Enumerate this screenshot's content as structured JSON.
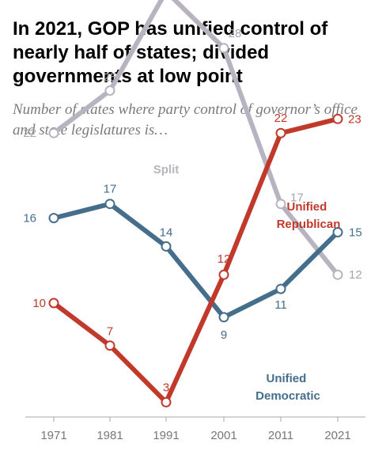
{
  "title": "In 2021, GOP has unified control of nearly half of states; divided governments at low point",
  "subtitle": "Number of states where party control of governor’s office and state legislatures is…",
  "colors": {
    "split": "#b8b3c0",
    "unified_republican": "#c1392b",
    "unified_democratic": "#456e8c",
    "axis": "#aaaaaa",
    "tick_text": "#777777"
  },
  "chart_data": {
    "type": "line",
    "x": [
      "1971",
      "1981",
      "1991",
      "2001",
      "2011",
      "2021"
    ],
    "ylim": [
      0,
      35
    ],
    "grid": false,
    "series": [
      {
        "key": "split",
        "name": "Split",
        "values": [
          22,
          25,
          32,
          28,
          17,
          12
        ]
      },
      {
        "key": "unified_republican",
        "name": "Unified Republican",
        "values": [
          10,
          7,
          3,
          12,
          22,
          23
        ]
      },
      {
        "key": "unified_democratic",
        "name": "Unified Democratic",
        "values": [
          16,
          17,
          14,
          9,
          11,
          15
        ]
      }
    ]
  }
}
